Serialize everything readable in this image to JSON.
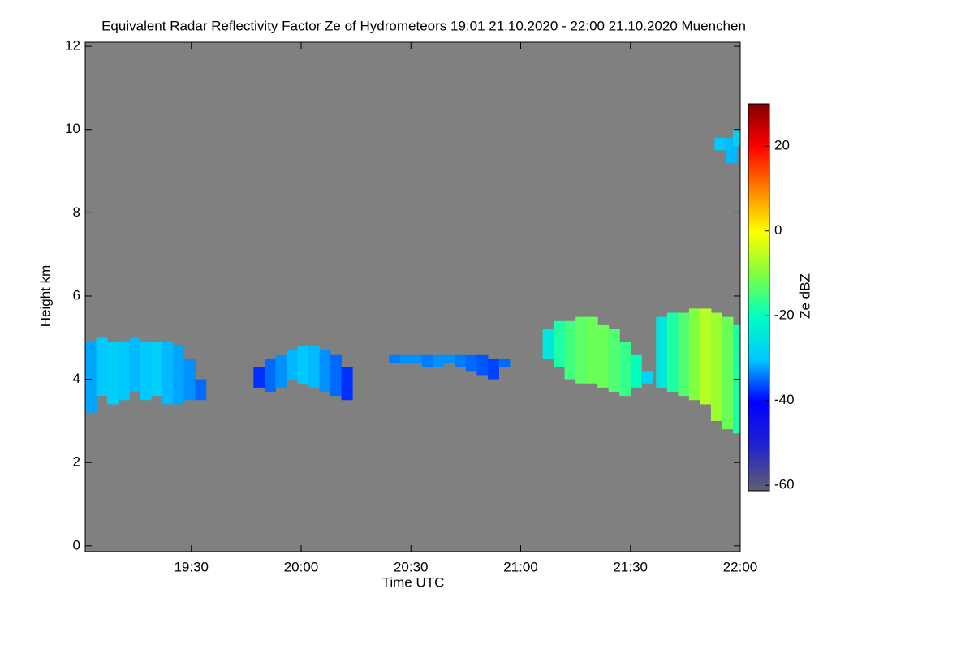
{
  "chart_data": {
    "type": "time-height",
    "title": "Equivalent Radar Reflectivity Factor Ze of Hydrometeors   19:01 21.10.2020 - 22:00 21.10.2020 Muenchen",
    "x_label": "Time UTC",
    "y_label": "Height km",
    "colorbar_label": "Ze dBZ",
    "xlim": [
      1141,
      1320
    ],
    "xticks": [
      {
        "value": 1170,
        "label": "19:30"
      },
      {
        "value": 1200,
        "label": "20:00"
      },
      {
        "value": 1230,
        "label": "20:30"
      },
      {
        "value": 1260,
        "label": "21:00"
      },
      {
        "value": 1290,
        "label": "21:30"
      },
      {
        "value": 1320,
        "label": "22:00"
      }
    ],
    "ylim": [
      -0.14,
      12.1
    ],
    "yticks": [
      0,
      2,
      4,
      6,
      8,
      10,
      12
    ],
    "clim": [
      -61.3,
      30
    ],
    "cticks": [
      -60,
      -40,
      -20,
      0,
      20
    ],
    "background": "#808080",
    "columns": {
      "x": [
        1141,
        1144,
        1147,
        1150,
        1153,
        1156,
        1159,
        1162,
        1165,
        1168,
        1171,
        1187,
        1190,
        1193,
        1196,
        1199,
        1202,
        1205,
        1208,
        1211,
        1224,
        1227,
        1230,
        1233,
        1236,
        1239,
        1242,
        1245,
        1248,
        1251,
        1254,
        1266,
        1269,
        1272,
        1275,
        1278,
        1281,
        1284,
        1287,
        1290,
        1293,
        1297,
        1300,
        1303,
        1306,
        1309,
        1312,
        1315,
        1318,
        1313,
        1316,
        1318
      ],
      "base": [
        3.2,
        3.6,
        3.4,
        3.5,
        3.7,
        3.5,
        3.6,
        3.4,
        3.4,
        3.5,
        3.5,
        3.8,
        3.7,
        3.8,
        4.0,
        3.9,
        3.8,
        3.7,
        3.6,
        3.5,
        4.4,
        4.4,
        4.4,
        4.3,
        4.3,
        4.4,
        4.3,
        4.2,
        4.1,
        4.0,
        4.3,
        4.5,
        4.3,
        4.0,
        3.9,
        3.9,
        3.8,
        3.7,
        3.6,
        3.8,
        3.9,
        3.8,
        3.7,
        3.6,
        3.5,
        3.4,
        3.0,
        2.8,
        2.7,
        9.5,
        9.2,
        9.6
      ],
      "top": [
        4.9,
        5.0,
        4.9,
        4.9,
        5.0,
        4.9,
        4.9,
        4.9,
        4.8,
        4.5,
        4.0,
        4.3,
        4.5,
        4.6,
        4.7,
        4.8,
        4.8,
        4.7,
        4.6,
        4.3,
        4.6,
        4.6,
        4.6,
        4.6,
        4.6,
        4.6,
        4.6,
        4.6,
        4.6,
        4.5,
        4.5,
        5.2,
        5.4,
        5.4,
        5.5,
        5.5,
        5.3,
        5.2,
        4.9,
        4.6,
        4.2,
        5.5,
        5.6,
        5.6,
        5.7,
        5.7,
        5.6,
        5.5,
        5.3,
        9.8,
        9.8,
        10.0
      ],
      "ze": [
        -32,
        -30,
        -29,
        -30,
        -31,
        -30,
        -29,
        -31,
        -32,
        -33,
        -35,
        -38,
        -35,
        -33,
        -31,
        -30,
        -31,
        -33,
        -35,
        -38,
        -34,
        -33,
        -33,
        -34,
        -33,
        -33,
        -34,
        -35,
        -36,
        -37,
        -35,
        -25,
        -18,
        -15,
        -13,
        -12,
        -12,
        -14,
        -16,
        -20,
        -28,
        -25,
        -18,
        -14,
        -10,
        -6,
        -8,
        -12,
        -18,
        -30,
        -31,
        -29
      ]
    }
  }
}
